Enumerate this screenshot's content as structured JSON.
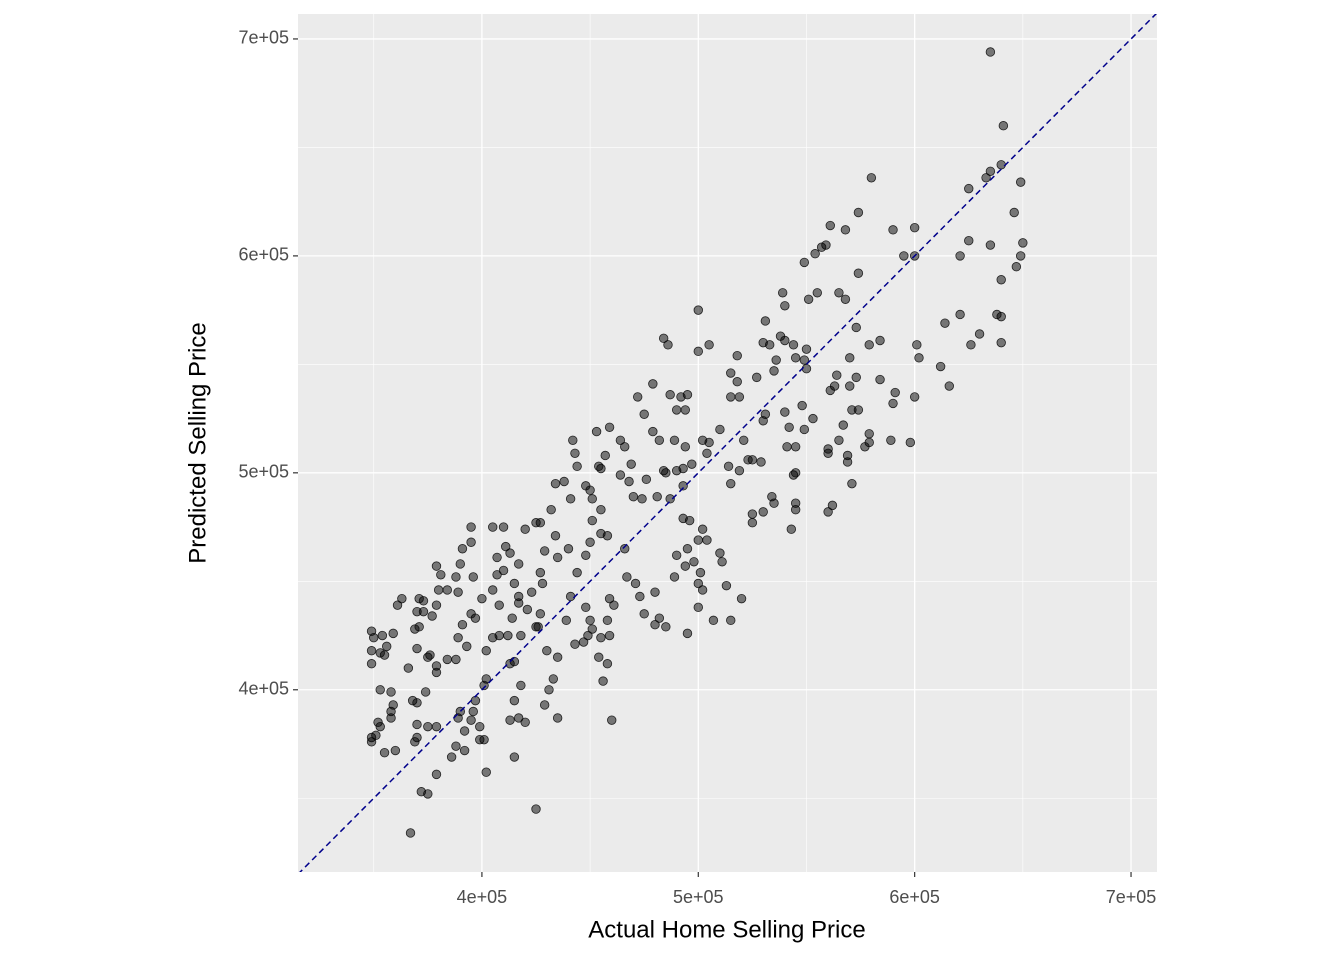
{
  "chart_data": {
    "type": "scatter",
    "x_label": "Actual Home Selling Price",
    "y_label": "Predicted Selling Price",
    "xlim": [
      315000,
      712000
    ],
    "ylim": [
      316000,
      711500
    ],
    "xticks": [
      {
        "value": 400000,
        "label": "4e+05"
      },
      {
        "value": 500000,
        "label": "5e+05"
      },
      {
        "value": 600000,
        "label": "6e+05"
      },
      {
        "value": 700000,
        "label": "7e+05"
      }
    ],
    "yticks": [
      {
        "value": 400000,
        "label": "4e+05"
      },
      {
        "value": 500000,
        "label": "5e+05"
      },
      {
        "value": 600000,
        "label": "6e+05"
      },
      {
        "value": 700000,
        "label": "7e+05"
      }
    ],
    "grid": true,
    "minor_grid": true,
    "color": "#000000",
    "opacity": 0.5,
    "reference_line": {
      "slope": 1,
      "intercept": 0,
      "color": "#00008b",
      "dashed": true
    },
    "x": [
      635000,
      641000,
      646000,
      649000,
      650000,
      649000,
      647000,
      640000,
      640000,
      640000,
      638000,
      635000,
      635000,
      633000,
      640000,
      625000,
      625000,
      626000,
      630000,
      621000,
      621000,
      614000,
      612000,
      616000,
      600000,
      600000,
      595000,
      590000,
      601000,
      602000,
      600000,
      598000,
      591000,
      590000,
      589000,
      584000,
      580000,
      574000,
      568000,
      574000,
      568000,
      565000,
      573000,
      570000,
      579000,
      584000,
      573000,
      570000,
      564000,
      563000,
      561000,
      571000,
      567000,
      565000,
      560000,
      560000,
      569000,
      569000,
      571000,
      562000,
      560000,
      579000,
      579000,
      577000,
      574000,
      559000,
      561000,
      557000,
      554000,
      549000,
      555000,
      551000,
      539000,
      540000,
      531000,
      538000,
      540000,
      544000,
      550000,
      549000,
      550000,
      545000,
      530000,
      533000,
      536000,
      535000,
      527000,
      518000,
      518000,
      515000,
      519000,
      515000,
      531000,
      530000,
      540000,
      542000,
      548000,
      549000,
      553000,
      541000,
      545000,
      545000,
      544000,
      545000,
      545000,
      543000,
      534000,
      535000,
      530000,
      525000,
      525000,
      523000,
      525000,
      529000,
      519000,
      514000,
      515000,
      521000,
      510000,
      504000,
      502000,
      505000,
      500000,
      505000,
      500000,
      484000,
      486000,
      487000,
      492000,
      495000,
      494000,
      490000,
      479000,
      472000,
      475000,
      479000,
      482000,
      489000,
      494000,
      497000,
      490000,
      493000,
      485000,
      487000,
      493000,
      493000,
      496000,
      502000,
      500000,
      504000,
      484000,
      476000,
      481000,
      474000,
      470000,
      468000,
      464000,
      469000,
      466000,
      464000,
      457000,
      453000,
      459000,
      454000,
      455000,
      448000,
      450000,
      451000,
      455000,
      451000,
      442000,
      443000,
      444000,
      438000,
      441000,
      434000,
      432000,
      427000,
      425000,
      434000,
      429000,
      435000,
      440000,
      444000,
      448000,
      450000,
      455000,
      458000,
      466000,
      467000,
      471000,
      473000,
      480000,
      475000,
      480000,
      485000,
      482000,
      489000,
      490000,
      495000,
      494000,
      498000,
      501000,
      500000,
      502000,
      500000,
      495000,
      507000,
      510000,
      511000,
      513000,
      515000,
      520000,
      459000,
      461000,
      458000,
      459000,
      455000,
      451000,
      449000,
      448000,
      450000,
      443000,
      447000,
      454000,
      458000,
      456000,
      460000,
      441000,
      439000,
      435000,
      433000,
      430000,
      431000,
      429000,
      435000,
      425000,
      426000,
      427000,
      423000,
      421000,
      417000,
      414000,
      418000,
      412000,
      408000,
      415000,
      413000,
      418000,
      415000,
      417000,
      413000,
      420000,
      415000,
      425000,
      410000,
      415000,
      417000,
      407000,
      405000,
      411000,
      410000,
      405000,
      407000,
      413000,
      417000,
      420000,
      427000,
      428000,
      395000,
      395000,
      391000,
      390000,
      396000,
      400000,
      395000,
      391000,
      389000,
      384000,
      388000,
      381000,
      379000,
      379000,
      377000,
      373000,
      370000,
      371000,
      370000,
      375000,
      376000,
      379000,
      384000,
      388000,
      393000,
      389000,
      405000,
      402000,
      402000,
      401000,
      397000,
      396000,
      395000,
      390000,
      389000,
      392000,
      388000,
      386000,
      392000,
      402000,
      401000,
      399000,
      399000,
      379000,
      375000,
      379000,
      374000,
      370000,
      370000,
      369000,
      370000,
      367000,
      372000,
      375000,
      379000,
      359000,
      358000,
      358000,
      353000,
      351000,
      349000,
      349000,
      352000,
      355000,
      360000,
      353000,
      358000,
      349000,
      350000,
      349000,
      349000,
      354000,
      356000,
      355000,
      353000,
      359000,
      361000,
      363000,
      369000,
      371000,
      373000,
      366000,
      368000,
      380000,
      397000,
      408000
    ],
    "values": [
      694000,
      660000,
      620000,
      634000,
      606000,
      600000,
      595000,
      589000,
      572000,
      560000,
      573000,
      605000,
      639000,
      636000,
      642000,
      631000,
      607000,
      559000,
      564000,
      600000,
      573000,
      569000,
      549000,
      540000,
      613000,
      600000,
      600000,
      612000,
      559000,
      553000,
      535000,
      514000,
      537000,
      532000,
      515000,
      543000,
      636000,
      620000,
      612000,
      592000,
      580000,
      583000,
      567000,
      553000,
      559000,
      561000,
      544000,
      540000,
      545000,
      540000,
      538000,
      529000,
      522000,
      515000,
      509000,
      511000,
      508000,
      505000,
      495000,
      485000,
      482000,
      518000,
      514000,
      512000,
      529000,
      605000,
      614000,
      604000,
      601000,
      597000,
      583000,
      580000,
      583000,
      577000,
      570000,
      563000,
      561000,
      559000,
      557000,
      552000,
      548000,
      553000,
      560000,
      559000,
      552000,
      547000,
      544000,
      554000,
      542000,
      546000,
      535000,
      535000,
      527000,
      524000,
      528000,
      521000,
      531000,
      520000,
      525000,
      512000,
      512000,
      500000,
      499000,
      486000,
      483000,
      474000,
      489000,
      486000,
      482000,
      481000,
      477000,
      506000,
      506000,
      505000,
      501000,
      503000,
      495000,
      515000,
      520000,
      509000,
      515000,
      514000,
      575000,
      559000,
      556000,
      562000,
      559000,
      536000,
      535000,
      536000,
      529000,
      529000,
      541000,
      535000,
      527000,
      519000,
      515000,
      515000,
      512000,
      504000,
      501000,
      502000,
      500000,
      488000,
      494000,
      479000,
      478000,
      474000,
      469000,
      469000,
      501000,
      497000,
      489000,
      488000,
      489000,
      496000,
      499000,
      504000,
      512000,
      515000,
      508000,
      519000,
      521000,
      503000,
      502000,
      494000,
      492000,
      488000,
      483000,
      478000,
      515000,
      509000,
      503000,
      496000,
      488000,
      495000,
      483000,
      477000,
      477000,
      471000,
      464000,
      461000,
      465000,
      454000,
      462000,
      468000,
      472000,
      471000,
      465000,
      452000,
      449000,
      443000,
      445000,
      435000,
      430000,
      429000,
      433000,
      452000,
      462000,
      465000,
      457000,
      459000,
      454000,
      449000,
      446000,
      438000,
      426000,
      432000,
      463000,
      459000,
      448000,
      432000,
      442000,
      442000,
      439000,
      432000,
      425000,
      424000,
      428000,
      425000,
      438000,
      432000,
      421000,
      422000,
      415000,
      412000,
      404000,
      386000,
      443000,
      432000,
      415000,
      405000,
      418000,
      400000,
      393000,
      387000,
      429000,
      429000,
      435000,
      445000,
      437000,
      440000,
      433000,
      425000,
      425000,
      425000,
      413000,
      412000,
      402000,
      395000,
      387000,
      386000,
      385000,
      369000,
      345000,
      455000,
      449000,
      443000,
      453000,
      446000,
      466000,
      475000,
      475000,
      461000,
      463000,
      458000,
      474000,
      454000,
      449000,
      475000,
      468000,
      465000,
      458000,
      452000,
      442000,
      435000,
      430000,
      445000,
      446000,
      452000,
      453000,
      457000,
      439000,
      434000,
      436000,
      436000,
      429000,
      419000,
      415000,
      416000,
      411000,
      414000,
      414000,
      420000,
      424000,
      424000,
      418000,
      405000,
      402000,
      395000,
      390000,
      386000,
      390000,
      387000,
      381000,
      374000,
      369000,
      372000,
      362000,
      377000,
      377000,
      383000,
      408000,
      383000,
      383000,
      399000,
      394000,
      384000,
      376000,
      378000,
      334000,
      353000,
      352000,
      361000,
      393000,
      387000,
      390000,
      383000,
      379000,
      376000,
      378000,
      385000,
      371000,
      372000,
      400000,
      399000,
      427000,
      424000,
      412000,
      418000,
      425000,
      420000,
      416000,
      417000,
      426000,
      439000,
      442000,
      428000,
      442000,
      441000,
      410000,
      395000,
      446000,
      433000,
      439000
    ]
  }
}
